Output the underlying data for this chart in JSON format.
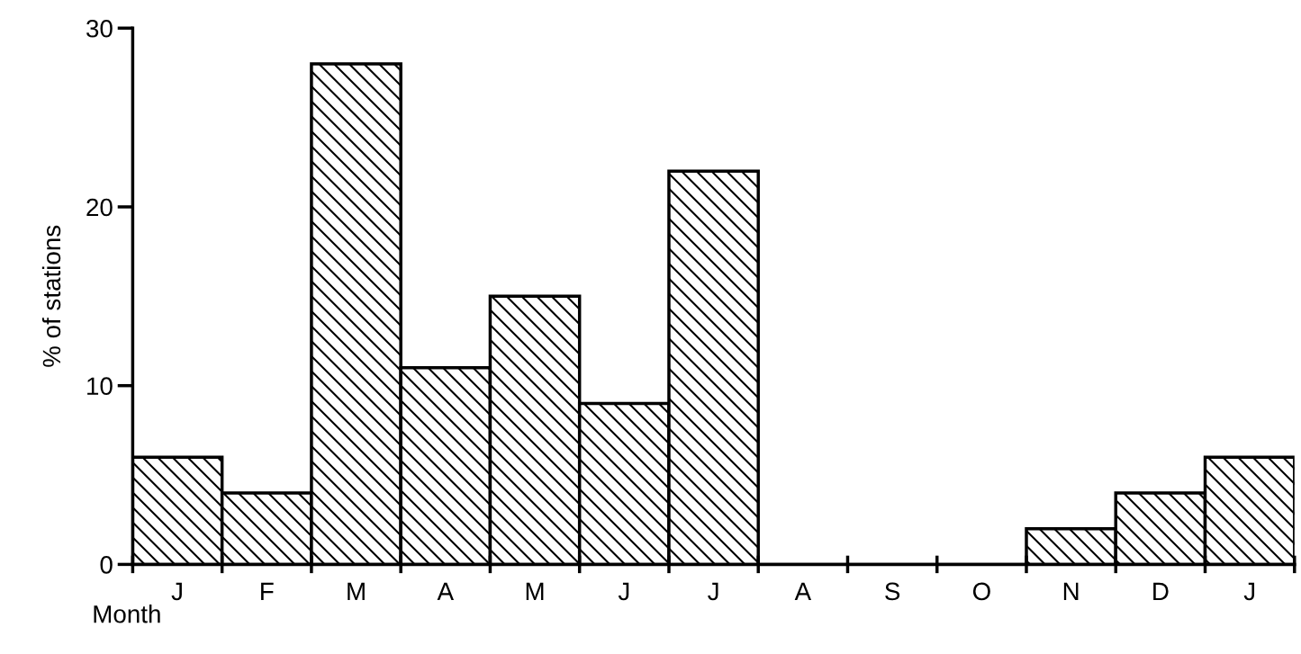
{
  "chart_data": {
    "type": "bar",
    "xlabel": "Month",
    "ylabel": "% of stations",
    "categories": [
      "J",
      "F",
      "M",
      "A",
      "M",
      "J",
      "J",
      "A",
      "S",
      "O",
      "N",
      "D",
      "J"
    ],
    "values": [
      6,
      4,
      28,
      11,
      15,
      9,
      22,
      0,
      0,
      0,
      2,
      4,
      6
    ],
    "color": "#000000",
    "ylim": [
      0,
      30
    ],
    "yticks": [
      0,
      10,
      20,
      30
    ],
    "grid": false
  }
}
